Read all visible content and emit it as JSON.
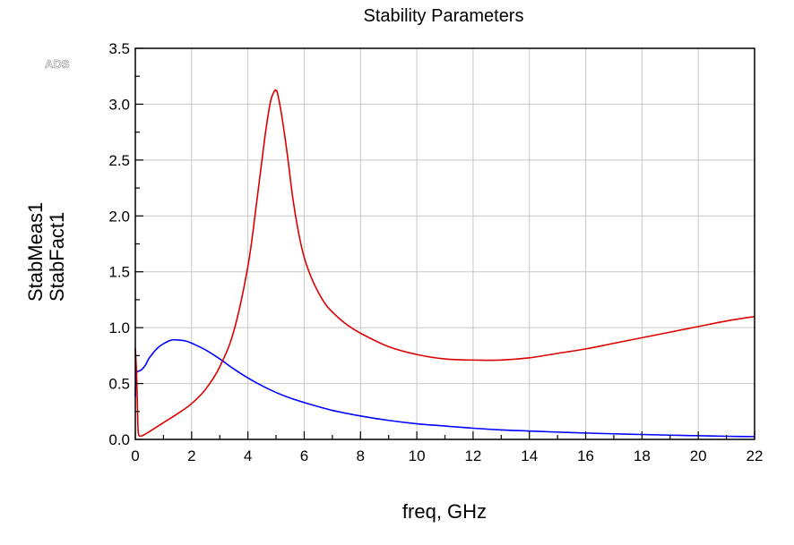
{
  "chart_data": {
    "type": "line",
    "title": "Stability Parameters",
    "watermark": "ADS",
    "xlabel": "freq, GHz",
    "xlim": [
      0,
      22
    ],
    "ylim": [
      0,
      3.5
    ],
    "x_ticks": [
      "0",
      "2",
      "4",
      "6",
      "8",
      "10",
      "12",
      "14",
      "16",
      "18",
      "20",
      "22"
    ],
    "y_ticks": [
      "0.0",
      "0.5",
      "1.0",
      "1.5",
      "2.0",
      "2.5",
      "3.0",
      "3.5"
    ],
    "grid": true,
    "series": [
      {
        "name": "StabMeas1",
        "color": "#0000ff",
        "x": [
          0.0,
          0.02,
          0.05,
          0.1,
          0.2,
          0.35,
          0.5,
          0.8,
          1.1,
          1.3,
          1.5,
          1.8,
          2.1,
          2.5,
          3.0,
          3.5,
          4.0,
          4.5,
          5.0,
          5.5,
          6.0,
          7.0,
          8.0,
          9.0,
          10.0,
          11.0,
          12.0,
          13.0,
          14.0,
          15.0,
          16.0,
          17.0,
          18.0,
          19.0,
          20.0,
          21.0,
          22.0
        ],
        "y": [
          0.38,
          0.6,
          0.6,
          0.61,
          0.62,
          0.66,
          0.73,
          0.82,
          0.87,
          0.89,
          0.89,
          0.88,
          0.85,
          0.8,
          0.72,
          0.63,
          0.55,
          0.48,
          0.42,
          0.37,
          0.33,
          0.26,
          0.21,
          0.17,
          0.14,
          0.12,
          0.1,
          0.085,
          0.075,
          0.065,
          0.057,
          0.05,
          0.044,
          0.038,
          0.033,
          0.028,
          0.025
        ]
      },
      {
        "name": "StabFact1",
        "color": "#dd0000",
        "x": [
          0.0,
          0.02,
          0.05,
          0.08,
          0.1,
          0.15,
          0.3,
          0.5,
          1.0,
          1.5,
          2.0,
          2.5,
          3.0,
          3.5,
          4.0,
          4.3,
          4.6,
          4.8,
          4.95,
          5.0,
          5.05,
          5.2,
          5.4,
          5.6,
          5.8,
          6.0,
          6.3,
          6.7,
          7.0,
          7.5,
          8.0,
          9.0,
          10.0,
          11.0,
          12.0,
          13.0,
          14.0,
          15.0,
          16.0,
          17.0,
          18.0,
          19.0,
          20.0,
          21.0,
          22.0
        ],
        "y": [
          0.82,
          0.72,
          0.55,
          0.25,
          0.08,
          0.03,
          0.04,
          0.07,
          0.15,
          0.23,
          0.32,
          0.45,
          0.65,
          0.97,
          1.55,
          2.1,
          2.7,
          3.02,
          3.12,
          3.12,
          3.1,
          2.9,
          2.55,
          2.15,
          1.85,
          1.63,
          1.42,
          1.23,
          1.14,
          1.03,
          0.95,
          0.83,
          0.76,
          0.72,
          0.71,
          0.71,
          0.73,
          0.77,
          0.81,
          0.86,
          0.91,
          0.96,
          1.01,
          1.06,
          1.1
        ]
      }
    ]
  }
}
